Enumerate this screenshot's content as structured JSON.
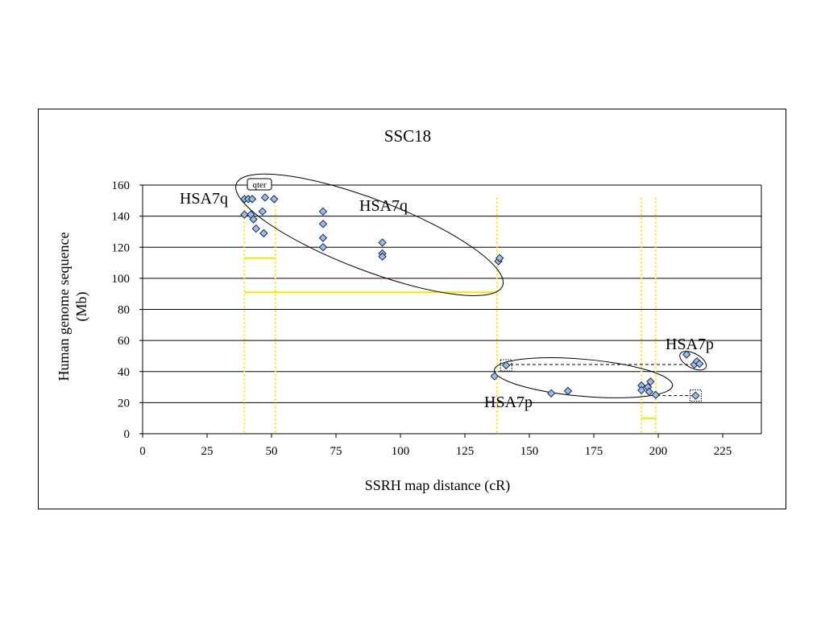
{
  "chart_data": {
    "type": "scatter",
    "title": "SSC18",
    "xlabel": "SSRH map distance (cR)",
    "ylabel": [
      "Human genome sequence",
      "(Mb)"
    ],
    "xlim": [
      0,
      240
    ],
    "ylim": [
      0,
      160
    ],
    "xticks": [
      0,
      25,
      50,
      75,
      100,
      125,
      150,
      175,
      200,
      225
    ],
    "yticks": [
      0,
      20,
      40,
      60,
      80,
      100,
      120,
      140,
      160
    ],
    "grid": "horizontal",
    "legend": "none",
    "marker_color": "#9bbbe8",
    "series": [
      {
        "points": [
          [
            39.5,
            151
          ],
          [
            41,
            151
          ],
          [
            42.5,
            151
          ],
          [
            47.5,
            152
          ],
          [
            51,
            151
          ],
          [
            39.5,
            141
          ],
          [
            42,
            141
          ],
          [
            43,
            138
          ],
          [
            46.5,
            143
          ],
          [
            44,
            132
          ],
          [
            47,
            129
          ],
          [
            70,
            143
          ],
          [
            70,
            135
          ],
          [
            70,
            126
          ],
          [
            70,
            120
          ],
          [
            93,
            123
          ],
          [
            93,
            116
          ],
          [
            93,
            114
          ],
          [
            138,
            111
          ],
          [
            138.5,
            113
          ],
          [
            136.5,
            37
          ],
          [
            141,
            44
          ],
          [
            158.5,
            26
          ],
          [
            165,
            27.5
          ],
          [
            193.5,
            31
          ],
          [
            193.5,
            28
          ],
          [
            196,
            30
          ],
          [
            196.5,
            27
          ],
          [
            197,
            33.5
          ],
          [
            199,
            25
          ],
          [
            211,
            51
          ],
          [
            214,
            44.5
          ],
          [
            215,
            46.5
          ],
          [
            216,
            45
          ],
          [
            214.5,
            24.5
          ]
        ]
      }
    ],
    "annotations": {
      "labels": [
        "HSA7q",
        "HSA7q",
        "HSA7p",
        "HSA7p"
      ],
      "qter": "qter"
    }
  }
}
